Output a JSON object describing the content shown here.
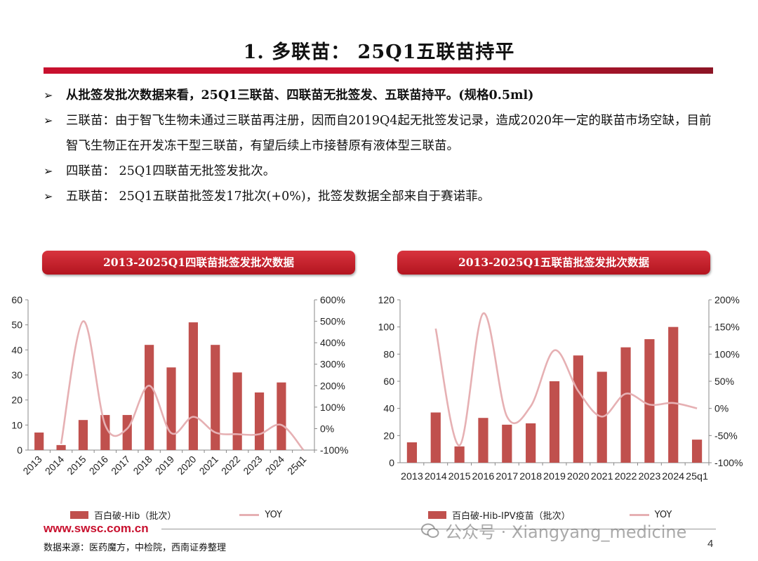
{
  "page": {
    "title": "1. 多联苗： 25Q1五联苗持平",
    "bullets": [
      "从批签发批次数据来看，25Q1三联苗、四联苗无批签发、五联苗持平。(规格0.5ml)",
      "三联苗：由于智飞生物未通过三联苗再注册，因而自2019Q4起无批签发记录，造成2020年一定的联苗市场空缺，目前智飞生物正在开发冻干型三联苗，有望后续上市接替原有液体型三联苗。",
      "四联苗： 25Q1四联苗无批签发批次。",
      "五联苗： 25Q1五联苗批签发17批次(+0%)，批签发数据全部来自于赛诺菲。"
    ],
    "bullet_arrow": "➢",
    "footer_url": "www.swsc.com.cn",
    "source": "数据来源：医药魔方，中检院，西南证券整理",
    "page_number": "4",
    "watermark": "公众号 · Xiangyang_medicine"
  },
  "colors": {
    "bar": "#c0504d",
    "line": "#e6b0b3",
    "accent": "#c8102e"
  },
  "chart_data": [
    {
      "type": "bar",
      "title": "2013-2025Q1四联苗批签发批次数据",
      "categories": [
        "2013",
        "2014",
        "2015",
        "2016",
        "2017",
        "2018",
        "2019",
        "2020",
        "2021",
        "2022",
        "2023",
        "2024",
        "25q1"
      ],
      "series": [
        {
          "name": "百白破-Hib（批次）",
          "type": "bar",
          "axis": "left",
          "values": [
            7,
            2,
            12,
            14,
            14,
            42,
            33,
            51,
            42,
            31,
            23,
            27,
            0
          ]
        },
        {
          "name": "YOY",
          "type": "line",
          "axis": "right",
          "values": [
            null,
            -71,
            500,
            17,
            0,
            200,
            -21,
            55,
            -18,
            -26,
            -26,
            17,
            -100
          ]
        }
      ],
      "ylim": [
        0,
        60
      ],
      "yticks": [
        0,
        10,
        20,
        30,
        40,
        50,
        60
      ],
      "y2lim": [
        -100,
        600
      ],
      "y2ticks": [
        "-100%",
        "0%",
        "100%",
        "200%",
        "300%",
        "400%",
        "500%",
        "600%"
      ],
      "x_label_rotation": "rotated",
      "legend": "bottom"
    },
    {
      "type": "bar",
      "title": "2013-2025Q1五联苗批签发批次数据",
      "categories": [
        "2013",
        "2014",
        "2015",
        "2016",
        "2017",
        "2018",
        "2019",
        "2020",
        "2021",
        "2022",
        "2023",
        "2024",
        "25q1"
      ],
      "series": [
        {
          "name": "百白破-Hib-IPV疫苗（批次）",
          "type": "bar",
          "axis": "left",
          "values": [
            15,
            37,
            12,
            33,
            28,
            29,
            60,
            79,
            67,
            85,
            91,
            100,
            17
          ]
        },
        {
          "name": "YOY",
          "type": "line",
          "axis": "right",
          "values": [
            null,
            147,
            -68,
            175,
            -15,
            4,
            107,
            32,
            -15,
            27,
            7,
            10,
            0
          ]
        }
      ],
      "ylim": [
        0,
        120
      ],
      "yticks": [
        0,
        20,
        40,
        60,
        80,
        100,
        120
      ],
      "y2lim": [
        -100,
        200
      ],
      "y2ticks": [
        "-100%",
        "-50%",
        "0%",
        "50%",
        "100%",
        "150%",
        "200%"
      ],
      "x_label_rotation": "none",
      "legend": "bottom"
    }
  ]
}
